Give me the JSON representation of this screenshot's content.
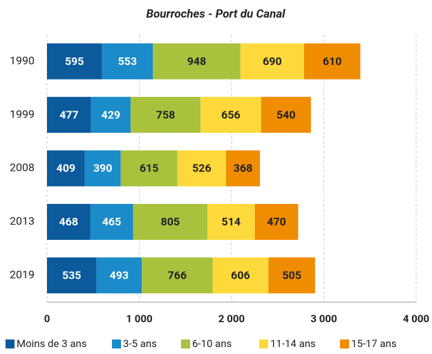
{
  "chart_data": {
    "type": "bar",
    "orientation": "horizontal",
    "stacked": true,
    "title": "Bourroches - Port du Canal",
    "categories": [
      "1990",
      "1999",
      "2008",
      "2013",
      "2019"
    ],
    "series": [
      {
        "name": "Moins de 3 ans",
        "color": "#0b5a9b",
        "label_color": "#ffffff",
        "values": [
          595,
          477,
          409,
          468,
          535
        ]
      },
      {
        "name": "3-5 ans",
        "color": "#1b8bc9",
        "label_color": "#ffffff",
        "values": [
          553,
          429,
          390,
          465,
          493
        ]
      },
      {
        "name": "6-10 ans",
        "color": "#a8c23e",
        "label_color": "#222222",
        "values": [
          948,
          758,
          615,
          805,
          766
        ]
      },
      {
        "name": "11-14 ans",
        "color": "#fdd93b",
        "label_color": "#222222",
        "values": [
          690,
          656,
          526,
          514,
          606
        ]
      },
      {
        "name": "15-17 ans",
        "color": "#f08c00",
        "label_color": "#222222",
        "values": [
          610,
          540,
          368,
          470,
          505
        ]
      }
    ],
    "xlim": [
      0,
      4000
    ],
    "xticks": [
      0,
      {
        "value": 1000,
        "label": "1 000"
      },
      {
        "value": 2000,
        "label": "2 000"
      },
      {
        "value": 3000,
        "label": "3 000"
      },
      {
        "value": 4000,
        "label": "4 000"
      }
    ],
    "grid": true,
    "legend": "bottom"
  }
}
